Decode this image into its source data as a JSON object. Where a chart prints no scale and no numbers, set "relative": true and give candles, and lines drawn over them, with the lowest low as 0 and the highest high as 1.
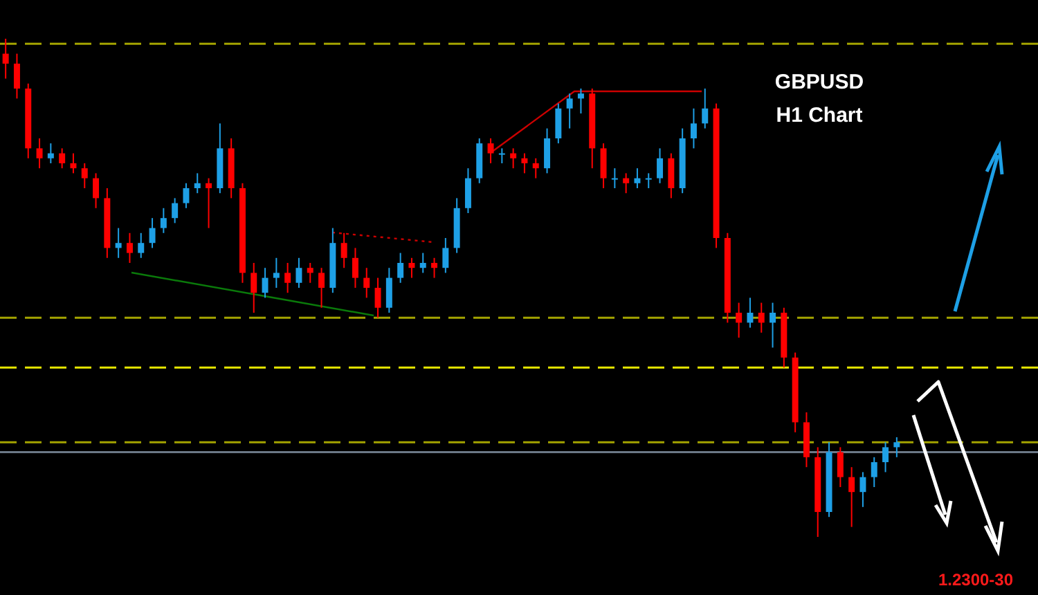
{
  "chart_data": {
    "type": "candlestick",
    "title": "GBPUSD",
    "subtitle": "H1 Chart",
    "relative": true,
    "categories": [
      null,
      null,
      null,
      null,
      null,
      null,
      null,
      null,
      null,
      null,
      null,
      null,
      null,
      null,
      null,
      null,
      null,
      null,
      null,
      null,
      null,
      null,
      null,
      null,
      null,
      null,
      null,
      null,
      null,
      null,
      null,
      null,
      null,
      null,
      null,
      null,
      null,
      null,
      null,
      null,
      null,
      null,
      null,
      null,
      null,
      null,
      null,
      null,
      null,
      null,
      null,
      null,
      null,
      null,
      null,
      null,
      null,
      null,
      null,
      null,
      null,
      null,
      null,
      null,
      null,
      null,
      null,
      null,
      null,
      null,
      null,
      null,
      null,
      null,
      null,
      null,
      null,
      null,
      null,
      null
    ],
    "ohlc": [
      [
        0.97,
        1.0,
        0.92,
        0.95
      ],
      [
        0.95,
        0.97,
        0.88,
        0.9
      ],
      [
        0.9,
        0.91,
        0.76,
        0.78
      ],
      [
        0.78,
        0.8,
        0.74,
        0.76
      ],
      [
        0.76,
        0.79,
        0.75,
        0.77
      ],
      [
        0.77,
        0.78,
        0.74,
        0.75
      ],
      [
        0.75,
        0.77,
        0.73,
        0.74
      ],
      [
        0.74,
        0.75,
        0.7,
        0.72
      ],
      [
        0.72,
        0.73,
        0.66,
        0.68
      ],
      [
        0.68,
        0.7,
        0.56,
        0.58
      ],
      [
        0.58,
        0.62,
        0.56,
        0.59
      ],
      [
        0.59,
        0.61,
        0.55,
        0.57
      ],
      [
        0.57,
        0.61,
        0.56,
        0.59
      ],
      [
        0.59,
        0.64,
        0.58,
        0.62
      ],
      [
        0.62,
        0.66,
        0.61,
        0.64
      ],
      [
        0.64,
        0.68,
        0.63,
        0.67
      ],
      [
        0.67,
        0.71,
        0.66,
        0.7
      ],
      [
        0.7,
        0.73,
        0.69,
        0.71
      ],
      [
        0.71,
        0.72,
        0.62,
        0.7
      ],
      [
        0.7,
        0.83,
        0.69,
        0.78
      ],
      [
        0.78,
        0.8,
        0.68,
        0.7
      ],
      [
        0.7,
        0.71,
        0.51,
        0.53
      ],
      [
        0.53,
        0.55,
        0.45,
        0.49
      ],
      [
        0.49,
        0.54,
        0.48,
        0.52
      ],
      [
        0.52,
        0.56,
        0.5,
        0.53
      ],
      [
        0.53,
        0.55,
        0.49,
        0.51
      ],
      [
        0.51,
        0.56,
        0.5,
        0.54
      ],
      [
        0.54,
        0.55,
        0.51,
        0.53
      ],
      [
        0.53,
        0.54,
        0.46,
        0.5
      ],
      [
        0.5,
        0.62,
        0.49,
        0.59
      ],
      [
        0.59,
        0.61,
        0.54,
        0.56
      ],
      [
        0.56,
        0.58,
        0.5,
        0.52
      ],
      [
        0.52,
        0.54,
        0.48,
        0.5
      ],
      [
        0.5,
        0.52,
        0.44,
        0.46
      ],
      [
        0.46,
        0.54,
        0.45,
        0.52
      ],
      [
        0.52,
        0.57,
        0.51,
        0.55
      ],
      [
        0.55,
        0.56,
        0.52,
        0.54
      ],
      [
        0.54,
        0.57,
        0.53,
        0.55
      ],
      [
        0.55,
        0.56,
        0.52,
        0.54
      ],
      [
        0.54,
        0.6,
        0.53,
        0.58
      ],
      [
        0.58,
        0.68,
        0.57,
        0.66
      ],
      [
        0.66,
        0.74,
        0.65,
        0.72
      ],
      [
        0.72,
        0.8,
        0.71,
        0.79
      ],
      [
        0.79,
        0.8,
        0.75,
        0.77
      ],
      [
        0.77,
        0.78,
        0.75,
        0.77
      ],
      [
        0.77,
        0.78,
        0.74,
        0.76
      ],
      [
        0.76,
        0.77,
        0.73,
        0.75
      ],
      [
        0.75,
        0.76,
        0.72,
        0.74
      ],
      [
        0.74,
        0.82,
        0.73,
        0.8
      ],
      [
        0.8,
        0.87,
        0.79,
        0.86
      ],
      [
        0.86,
        0.89,
        0.82,
        0.88
      ],
      [
        0.88,
        0.9,
        0.85,
        0.89
      ],
      [
        0.89,
        0.9,
        0.74,
        0.78
      ],
      [
        0.78,
        0.79,
        0.7,
        0.72
      ],
      [
        0.72,
        0.74,
        0.7,
        0.72
      ],
      [
        0.72,
        0.73,
        0.69,
        0.71
      ],
      [
        0.71,
        0.74,
        0.7,
        0.72
      ],
      [
        0.72,
        0.73,
        0.7,
        0.72
      ],
      [
        0.72,
        0.78,
        0.71,
        0.76
      ],
      [
        0.76,
        0.77,
        0.68,
        0.7
      ],
      [
        0.7,
        0.82,
        0.69,
        0.8
      ],
      [
        0.8,
        0.86,
        0.78,
        0.83
      ],
      [
        0.83,
        0.9,
        0.82,
        0.86
      ],
      [
        0.86,
        0.87,
        0.58,
        0.6
      ],
      [
        0.6,
        0.61,
        0.43,
        0.45
      ],
      [
        0.45,
        0.47,
        0.4,
        0.43
      ],
      [
        0.43,
        0.48,
        0.42,
        0.45
      ],
      [
        0.45,
        0.47,
        0.41,
        0.43
      ],
      [
        0.43,
        0.47,
        0.38,
        0.45
      ],
      [
        0.45,
        0.46,
        0.34,
        0.36
      ],
      [
        0.36,
        0.37,
        0.21,
        0.23
      ],
      [
        0.23,
        0.25,
        0.14,
        0.16
      ],
      [
        0.16,
        0.18,
        0.0,
        0.05
      ],
      [
        0.05,
        0.19,
        0.04,
        0.17
      ],
      [
        0.17,
        0.18,
        0.1,
        0.12
      ],
      [
        0.12,
        0.14,
        0.02,
        0.09
      ],
      [
        0.09,
        0.13,
        0.06,
        0.12
      ],
      [
        0.12,
        0.16,
        0.1,
        0.15
      ],
      [
        0.15,
        0.19,
        0.13,
        0.18
      ],
      [
        0.18,
        0.2,
        0.16,
        0.19
      ]
    ],
    "colors": [
      "#ff0000",
      "#ff0000",
      "#ff0000",
      "#ff0000",
      "#1ea0e6",
      "#ff0000",
      "#ff0000",
      "#ff0000",
      "#ff0000",
      "#ff0000",
      "#1ea0e6",
      "#ff0000",
      "#1ea0e6",
      "#1ea0e6",
      "#1ea0e6",
      "#1ea0e6",
      "#1ea0e6",
      "#1ea0e6",
      "#ff0000",
      "#1ea0e6",
      "#ff0000",
      "#ff0000",
      "#ff0000",
      "#1ea0e6",
      "#1ea0e6",
      "#ff0000",
      "#1ea0e6",
      "#ff0000",
      "#ff0000",
      "#1ea0e6",
      "#ff0000",
      "#ff0000",
      "#ff0000",
      "#ff0000",
      "#1ea0e6",
      "#1ea0e6",
      "#ff0000",
      "#1ea0e6",
      "#ff0000",
      "#1ea0e6",
      "#1ea0e6",
      "#1ea0e6",
      "#1ea0e6",
      "#ff0000",
      "#1ea0e6",
      "#ff0000",
      "#ff0000",
      "#ff0000",
      "#1ea0e6",
      "#1ea0e6",
      "#1ea0e6",
      "#1ea0e6",
      "#ff0000",
      "#ff0000",
      "#1ea0e6",
      "#ff0000",
      "#1ea0e6",
      "#1ea0e6",
      "#1ea0e6",
      "#ff0000",
      "#1ea0e6",
      "#1ea0e6",
      "#1ea0e6",
      "#ff0000",
      "#ff0000",
      "#ff0000",
      "#1ea0e6",
      "#ff0000",
      "#1ea0e6",
      "#ff0000",
      "#ff0000",
      "#ff0000",
      "#ff0000",
      "#1ea0e6",
      "#ff0000",
      "#ff0000",
      "#1ea0e6",
      "#1ea0e6",
      "#1ea0e6",
      "#1ea0e6"
    ],
    "ref_lines": [
      {
        "axis": "y",
        "value": 0.99,
        "color": "#a3a300",
        "line_style": "dashed"
      },
      {
        "axis": "y",
        "value": 0.44,
        "color": "#a3a300",
        "line_style": "dashed"
      },
      {
        "axis": "y",
        "value": 0.34,
        "color": "#e6e600",
        "line_style": "dashed"
      },
      {
        "axis": "y",
        "value": 0.19,
        "color": "#a3a300",
        "line_style": "dashed"
      },
      {
        "axis": "y",
        "value": 0.17,
        "color": "#6b7886",
        "line_style": "solid"
      }
    ],
    "annotations": [
      "1.2300-30"
    ]
  }
}
